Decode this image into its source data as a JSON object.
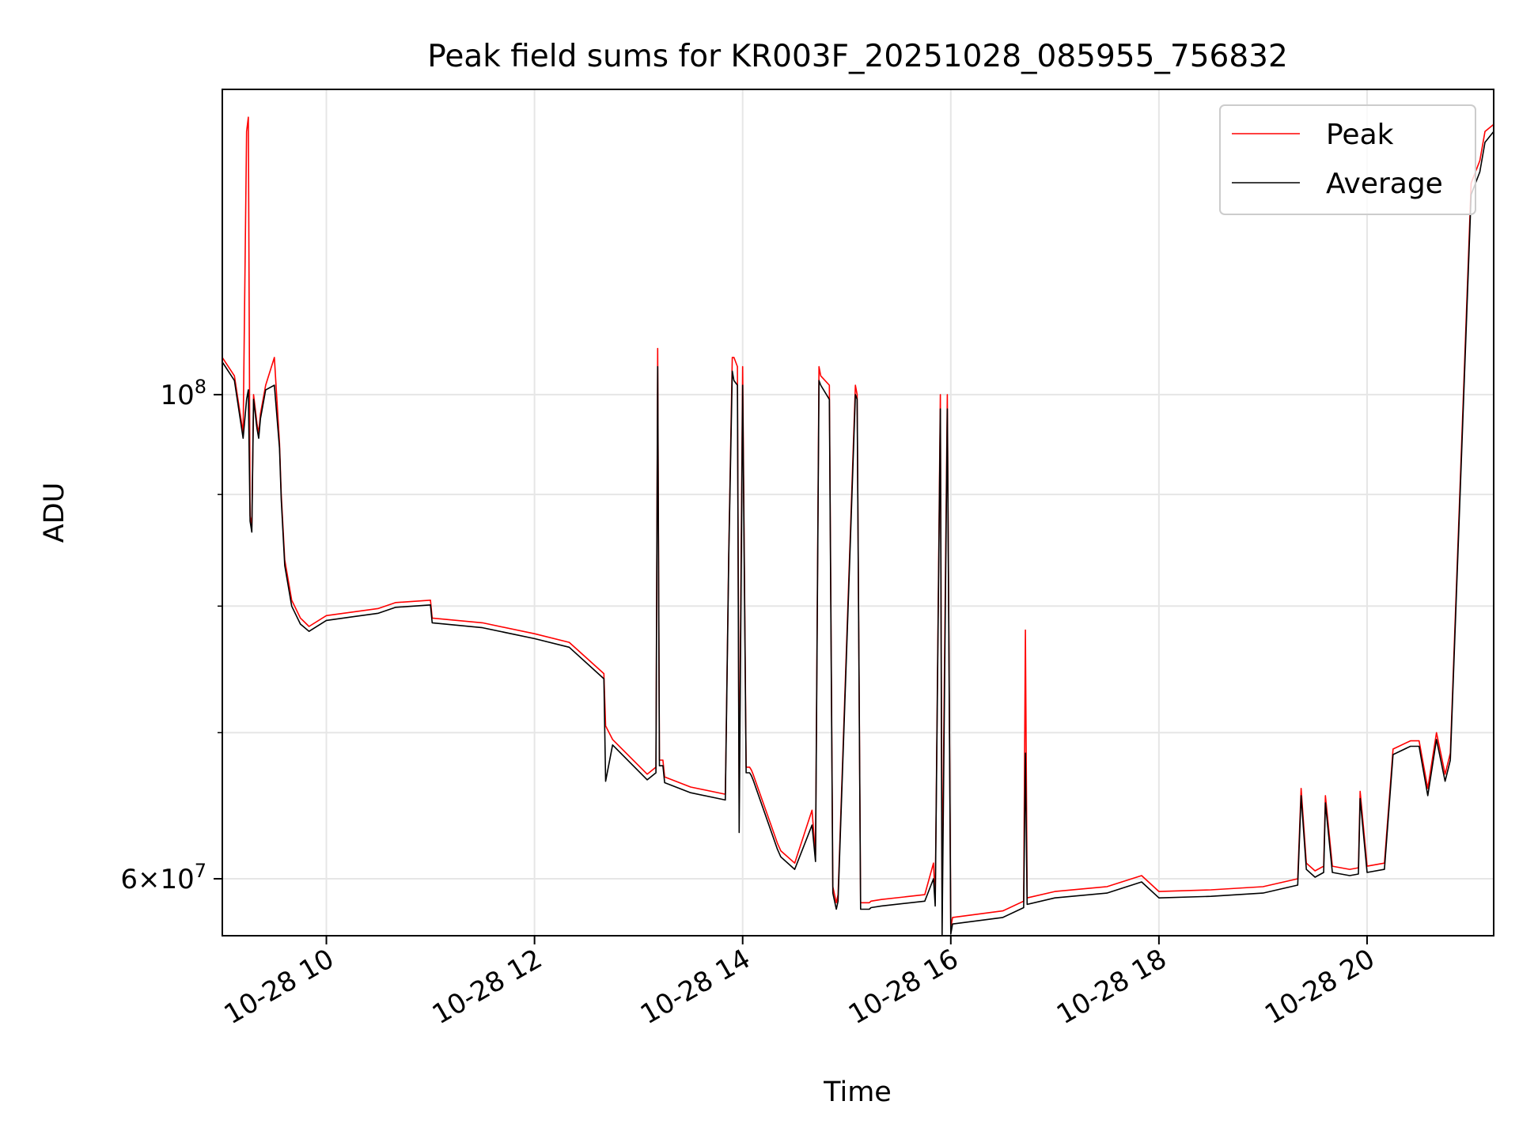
{
  "chart_data": {
    "type": "line",
    "title": "Peak field sums for KR003F_20251028_085955_756832",
    "xlabel": "Time",
    "ylabel": "ADU",
    "yscale": "log",
    "grid": true,
    "legend_position": "upper right",
    "xlim": [
      "2025-10-28 09:00",
      "2025-10-28 21:13"
    ],
    "ylim": [
      56500000,
      138000000
    ],
    "x_ticks": [
      {
        "value": "2025-10-28 10:00",
        "label": "10-28 10"
      },
      {
        "value": "2025-10-28 12:00",
        "label": "10-28 12"
      },
      {
        "value": "2025-10-28 14:00",
        "label": "10-28 14"
      },
      {
        "value": "2025-10-28 16:00",
        "label": "10-28 16"
      },
      {
        "value": "2025-10-28 18:00",
        "label": "10-28 18"
      },
      {
        "value": "2025-10-28 20:00",
        "label": "10-28 20"
      }
    ],
    "y_ticks": [
      {
        "value": 100000000,
        "base": "10",
        "exp": "8"
      },
      {
        "value": 60000000,
        "mant": "6",
        "base": "10",
        "exp": "7"
      }
    ],
    "y_minor_ticks": [
      70000000,
      80000000,
      90000000
    ],
    "series": [
      {
        "name": "Peak",
        "color": "#ff0000",
        "x": [
          "09:00",
          "09:07",
          "09:12",
          "09:14",
          "09:15",
          "09:16",
          "09:17",
          "09:18",
          "09:20",
          "09:21",
          "09:22",
          "09:25",
          "09:30",
          "09:33",
          "09:34",
          "09:36",
          "09:40",
          "09:45",
          "09:50",
          "10:00",
          "10:15",
          "10:30",
          "10:40",
          "11:00",
          "11:01",
          "11:30",
          "12:00",
          "12:20",
          "12:40",
          "12:41",
          "12:45",
          "13:05",
          "13:10",
          "13:11",
          "13:12",
          "13:14",
          "13:15",
          "13:30",
          "13:50",
          "13:52",
          "13:54",
          "13:55",
          "13:57",
          "13:58",
          "14:00",
          "14:02",
          "14:04",
          "14:05",
          "14:06",
          "14:20",
          "14:22",
          "14:30",
          "14:40",
          "14:42",
          "14:44",
          "14:45",
          "14:50",
          "14:52",
          "14:54",
          "14:55",
          "15:05",
          "15:06",
          "15:08",
          "15:13",
          "15:14",
          "15:20",
          "15:45",
          "15:50",
          "15:51",
          "15:54",
          "15:55",
          "15:58",
          "16:00",
          "16:01",
          "16:30",
          "16:42",
          "16:43",
          "16:44",
          "17:00",
          "17:30",
          "17:50",
          "18:00",
          "18:30",
          "19:00",
          "19:20",
          "19:22",
          "19:25",
          "19:30",
          "19:35",
          "19:36",
          "19:40",
          "19:50",
          "19:55",
          "19:56",
          "20:00",
          "20:10",
          "20:15",
          "20:25",
          "20:30",
          "20:35",
          "20:40",
          "20:45",
          "20:48",
          "21:00",
          "21:05",
          "21:08",
          "21:13"
        ],
        "y": [
          104000000,
          102000000,
          96000000,
          132000000,
          134000000,
          88000000,
          87000000,
          100000000,
          97000000,
          96000000,
          98000000,
          101000000,
          104000000,
          95000000,
          90000000,
          84000000,
          80500000,
          79000000,
          78300000,
          79200000,
          79500000,
          79800000,
          80300000,
          80500000,
          79000000,
          78600000,
          77700000,
          77000000,
          74500000,
          70500000,
          69500000,
          67000000,
          67500000,
          105000000,
          68000000,
          68000000,
          66800000,
          66100000,
          65600000,
          85000000,
          104000000,
          104000000,
          103000000,
          65000000,
          103000000,
          67500000,
          67500000,
          67300000,
          67000000,
          62300000,
          61800000,
          61000000,
          64500000,
          61500000,
          103000000,
          102000000,
          101000000,
          59500000,
          58500000,
          59000000,
          101000000,
          100000000,
          58500000,
          58500000,
          58600000,
          58700000,
          59000000,
          61000000,
          58700000,
          100000000,
          59000000,
          100000000,
          57000000,
          57600000,
          58000000,
          58600000,
          78000000,
          58800000,
          59200000,
          59500000,
          60200000,
          59200000,
          59300000,
          59500000,
          60000000,
          66000000,
          61000000,
          60500000,
          60800000,
          65500000,
          60800000,
          60600000,
          60700000,
          65800000,
          60800000,
          61000000,
          68800000,
          69400000,
          69400000,
          66000000,
          70000000,
          67000000,
          68500000,
          125000000,
          128000000,
          132000000,
          133000000
        ]
      },
      {
        "name": "Average",
        "color": "#000000",
        "x": [
          "09:00",
          "09:07",
          "09:12",
          "09:14",
          "09:15",
          "09:16",
          "09:17",
          "09:18",
          "09:20",
          "09:21",
          "09:22",
          "09:25",
          "09:30",
          "09:33",
          "09:34",
          "09:36",
          "09:40",
          "09:45",
          "09:50",
          "10:00",
          "10:15",
          "10:30",
          "10:40",
          "11:00",
          "11:01",
          "11:30",
          "12:00",
          "12:20",
          "12:40",
          "12:41",
          "12:45",
          "13:05",
          "13:10",
          "13:11",
          "13:12",
          "13:14",
          "13:15",
          "13:30",
          "13:50",
          "13:52",
          "13:54",
          "13:55",
          "13:57",
          "13:58",
          "14:00",
          "14:02",
          "14:04",
          "14:05",
          "14:06",
          "14:20",
          "14:22",
          "14:30",
          "14:40",
          "14:42",
          "14:44",
          "14:45",
          "14:50",
          "14:52",
          "14:54",
          "14:55",
          "15:05",
          "15:06",
          "15:08",
          "15:13",
          "15:14",
          "15:20",
          "15:45",
          "15:50",
          "15:51",
          "15:54",
          "15:55",
          "15:58",
          "16:00",
          "16:01",
          "16:30",
          "16:42",
          "16:43",
          "16:44",
          "17:00",
          "17:30",
          "17:50",
          "18:00",
          "18:30",
          "19:00",
          "19:20",
          "19:22",
          "19:25",
          "19:30",
          "19:35",
          "19:36",
          "19:40",
          "19:50",
          "19:55",
          "19:56",
          "20:00",
          "20:10",
          "20:15",
          "20:25",
          "20:30",
          "20:35",
          "20:40",
          "20:45",
          "20:48",
          "21:00",
          "21:05",
          "21:08",
          "21:13"
        ],
        "y": [
          103500000,
          101500000,
          95500000,
          99500000,
          100500000,
          87500000,
          86500000,
          99500000,
          96500000,
          95500000,
          97500000,
          100500000,
          101000000,
          94500000,
          89500000,
          83500000,
          80000000,
          78500000,
          77900000,
          78800000,
          79100000,
          79400000,
          79900000,
          80100000,
          78600000,
          78200000,
          77300000,
          76600000,
          74100000,
          66500000,
          69100000,
          66600000,
          67100000,
          103000000,
          67600000,
          67600000,
          66400000,
          65700000,
          65200000,
          84500000,
          102500000,
          101500000,
          101000000,
          63000000,
          101000000,
          67100000,
          67100000,
          66900000,
          66600000,
          61900000,
          61400000,
          60600000,
          63500000,
          61100000,
          101500000,
          101000000,
          99500000,
          59100000,
          58100000,
          58600000,
          100000000,
          99500000,
          58100000,
          58100000,
          58200000,
          58300000,
          58600000,
          60000000,
          58300000,
          98500000,
          56500000,
          98500000,
          56600000,
          57200000,
          57600000,
          58200000,
          68500000,
          58400000,
          58800000,
          59100000,
          59800000,
          58800000,
          58900000,
          59100000,
          59600000,
          65500000,
          60600000,
          60100000,
          60400000,
          65000000,
          60400000,
          60200000,
          60300000,
          65300000,
          60400000,
          60600000,
          68400000,
          69000000,
          69000000,
          65500000,
          69500000,
          66500000,
          68000000,
          123500000,
          126500000,
          130500000,
          132000000
        ]
      }
    ]
  }
}
